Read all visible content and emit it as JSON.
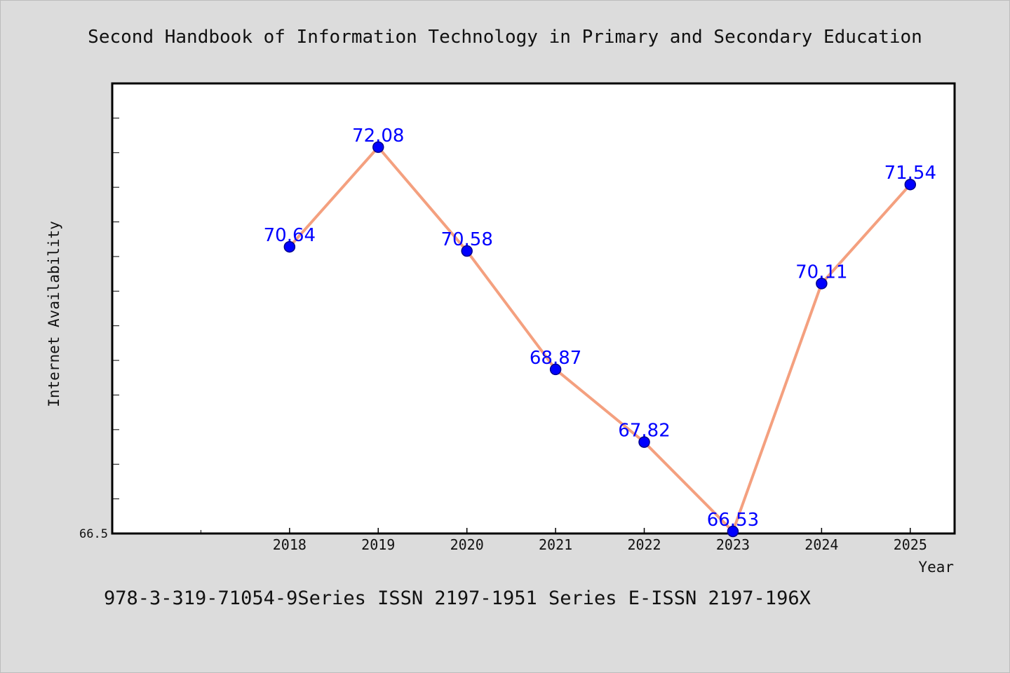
{
  "title": "Second Handbook of Information Technology in Primary and Secondary Education",
  "footer": "978-3-319-71054-9Series ISSN 2197-1951 Series E-ISSN 2197-196X",
  "colors": {
    "background": "#dcdcdc",
    "plot_bg": "#ffffff",
    "line": "#f4a07f",
    "marker": "#0000ff",
    "data_label": "#0000ff"
  },
  "chart_data": {
    "type": "line",
    "x": [
      "2018",
      "2019",
      "2020",
      "2021",
      "2022",
      "2023",
      "2024",
      "2025"
    ],
    "values": [
      70.64,
      72.08,
      70.58,
      68.87,
      67.82,
      66.53,
      70.11,
      71.54
    ],
    "value_labels": [
      "70.64",
      "72.08",
      "70.58",
      "68.87",
      "67.82",
      "66.53",
      "70.11",
      "71.54"
    ],
    "xlabel": "Year",
    "ylabel": "Internet Availability",
    "ytick_label": "66.5",
    "ylim": [
      66.5,
      73.0
    ],
    "y_minor_tick_step": 0.5,
    "x_axis_start_year": 2016,
    "x_axis_end_year": 2025.5,
    "x_minor_ticks_unlabeled": [
      "2016",
      "2017"
    ],
    "grid": false,
    "legend": "none"
  }
}
